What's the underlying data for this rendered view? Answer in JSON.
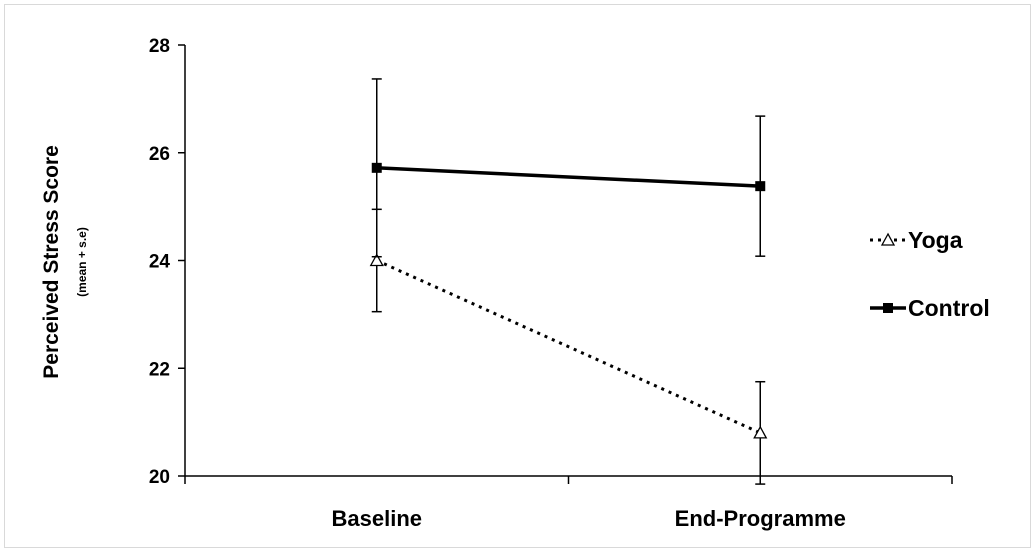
{
  "chart_data": {
    "type": "line",
    "categories": [
      "Baseline",
      "End-Programme"
    ],
    "ylabel": "Perceived Stress Score",
    "ylabel_sub": "(mean + s.e)",
    "ylim": [
      20,
      28
    ],
    "yticks": [
      20,
      22,
      24,
      26,
      28
    ],
    "grid": false,
    "legend_position": "right",
    "series": [
      {
        "name": "Yoga",
        "values": [
          24.0,
          20.8
        ],
        "error": [
          0.95,
          0.95
        ],
        "line_style": "dotted",
        "marker": "open-triangle",
        "color": "#000000"
      },
      {
        "name": "Control",
        "values": [
          25.72,
          25.38
        ],
        "error": [
          1.65,
          1.3
        ],
        "line_style": "solid",
        "marker": "filled-square",
        "color": "#000000"
      }
    ]
  }
}
